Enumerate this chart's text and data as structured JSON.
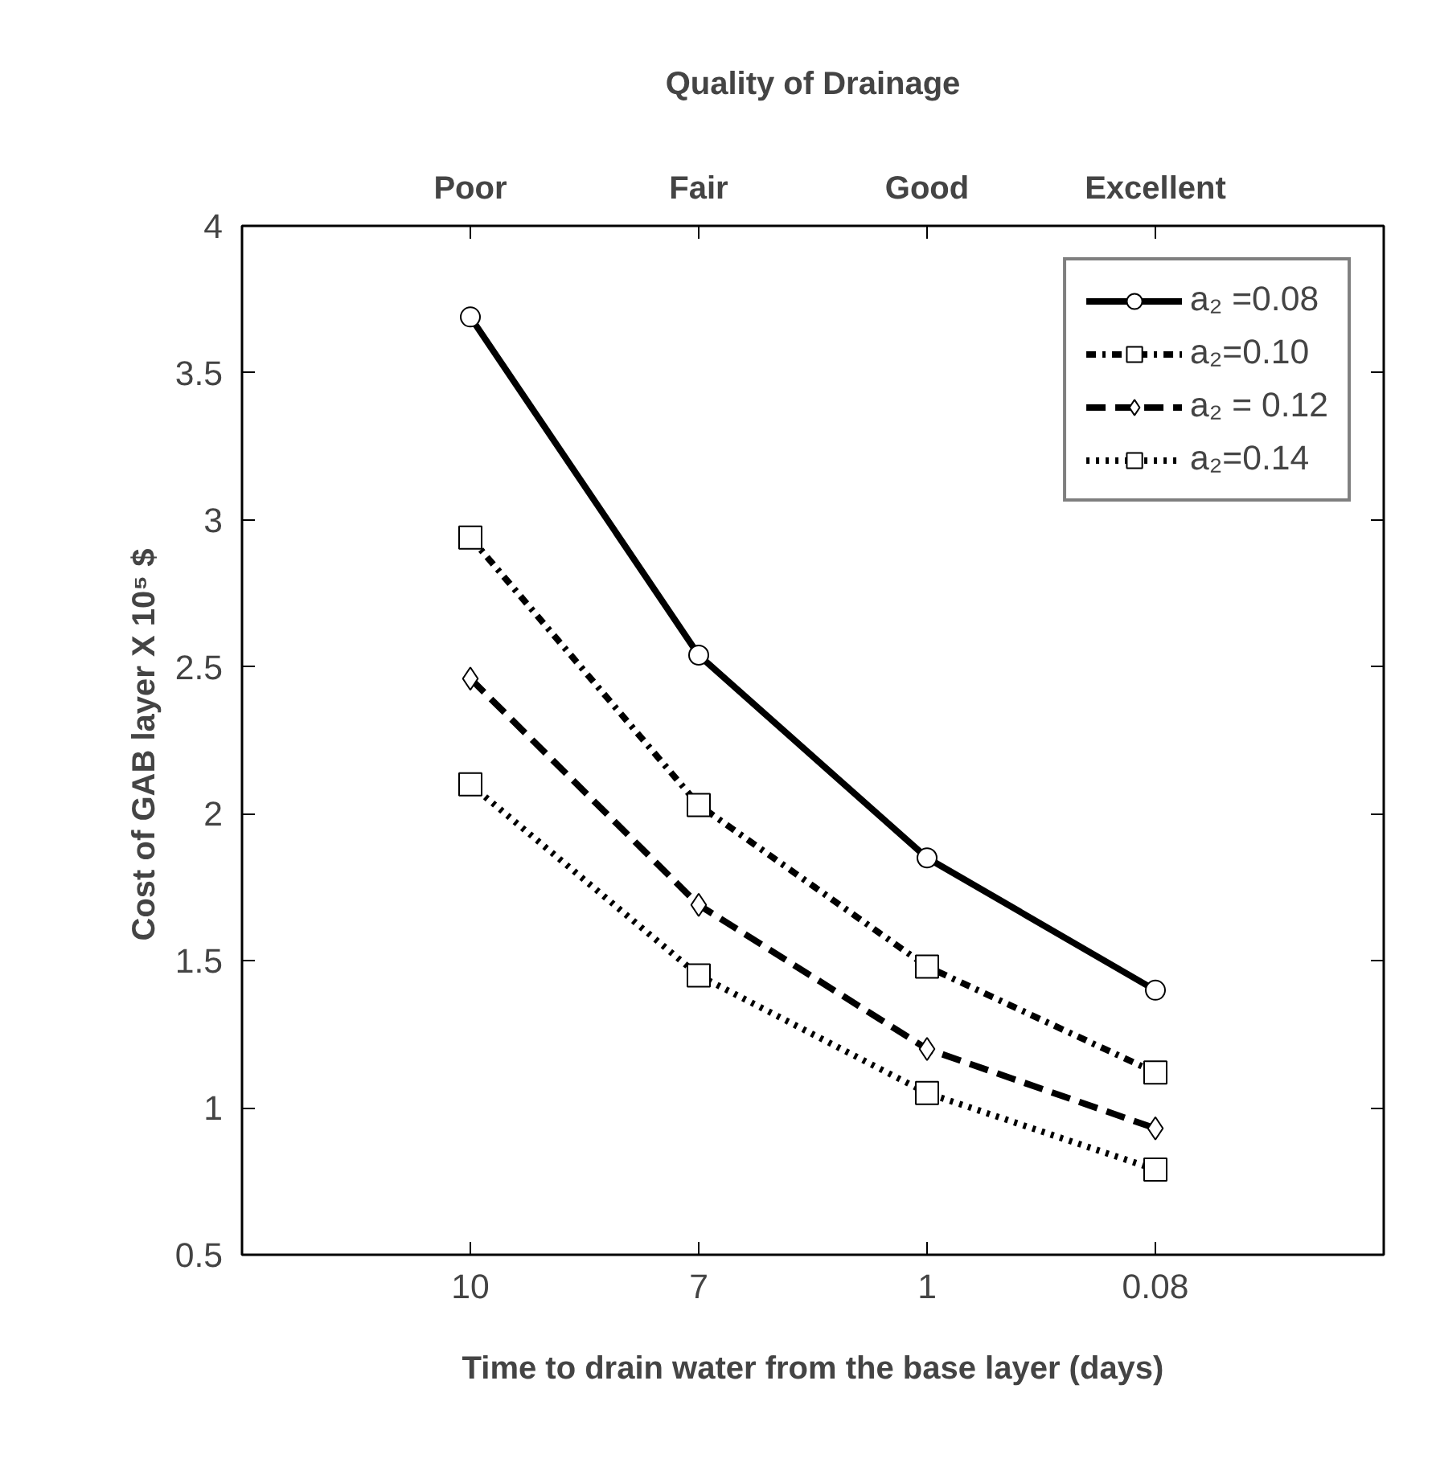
{
  "chart_data": {
    "type": "line",
    "x2label": "Quality of Drainage",
    "xlabel": "Time to drain water from the base layer (days)",
    "ylabel": "Cost of GAB layer  X 10⁵ $",
    "categories": [
      "10",
      "7",
      "1",
      "0.08"
    ],
    "ylim": [
      0.5,
      4
    ],
    "yticks": [
      0.5,
      1,
      1.5,
      2,
      2.5,
      3,
      3.5,
      4
    ],
    "grid": false,
    "legend": "top right",
    "annotations": [
      {
        "text": "Poor",
        "x": "10"
      },
      {
        "text": "Fair",
        "x": "7"
      },
      {
        "text": "Good",
        "x": "1"
      },
      {
        "text": "Excellent",
        "x": "0.08"
      }
    ],
    "series": [
      {
        "name": "a₂ =0.08",
        "color": "#000000",
        "marker": "circle",
        "line_style": "solid",
        "values": [
          3.69,
          2.54,
          1.85,
          1.4
        ]
      },
      {
        "name": "a₂=0.10",
        "color": "#000000",
        "marker": "square",
        "line_style": "dashed",
        "values": [
          2.94,
          2.03,
          1.48,
          1.12
        ]
      },
      {
        "name": "a₂ = 0.12",
        "color": "#000000",
        "marker": "diamond",
        "line_style": "dashed",
        "values": [
          2.46,
          1.69,
          1.2,
          0.93
        ]
      },
      {
        "name": "a₂=0.14",
        "color": "#000000",
        "marker": "square",
        "line_style": "dotted",
        "values": [
          2.1,
          1.45,
          1.05,
          0.79
        ]
      }
    ]
  }
}
